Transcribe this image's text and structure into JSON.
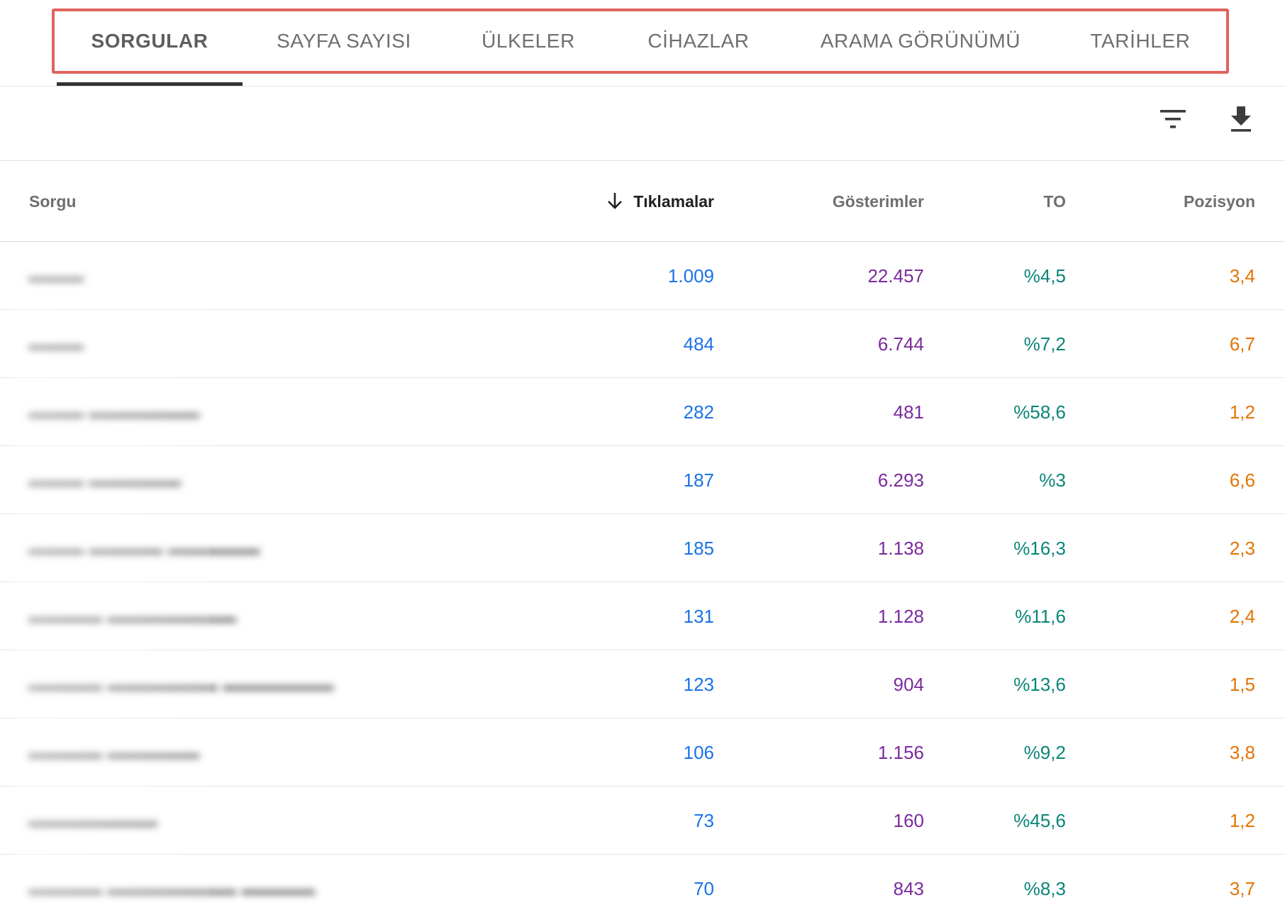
{
  "tabs": [
    {
      "label": "SORGULAR",
      "active": true
    },
    {
      "label": "SAYFA SAYISI",
      "active": false
    },
    {
      "label": "ÜLKELER",
      "active": false
    },
    {
      "label": "CİHAZLAR",
      "active": false
    },
    {
      "label": "ARAMA GÖRÜNÜMÜ",
      "active": false
    },
    {
      "label": "TARİHLER",
      "active": false
    }
  ],
  "toolbar": {
    "filter_icon": "filter-icon",
    "download_icon": "download-icon"
  },
  "table": {
    "columns": {
      "query": "Sorgu",
      "clicks": "Tıklamalar",
      "impressions": "Gösterimler",
      "ctr": "TO",
      "position": "Pozisyon"
    },
    "sorted_by": "clicks",
    "sort_direction": "desc",
    "rows": [
      {
        "query": "",
        "clicks": "1.009",
        "impressions": "22.457",
        "ctr": "%4,5",
        "position": "3,4"
      },
      {
        "query": "",
        "clicks": "484",
        "impressions": "6.744",
        "ctr": "%7,2",
        "position": "6,7"
      },
      {
        "query": "",
        "clicks": "282",
        "impressions": "481",
        "ctr": "%58,6",
        "position": "1,2"
      },
      {
        "query": "",
        "clicks": "187",
        "impressions": "6.293",
        "ctr": "%3",
        "position": "6,6"
      },
      {
        "query": "",
        "clicks": "185",
        "impressions": "1.138",
        "ctr": "%16,3",
        "position": "2,3"
      },
      {
        "query": "",
        "clicks": "131",
        "impressions": "1.128",
        "ctr": "%11,6",
        "position": "2,4"
      },
      {
        "query": "",
        "clicks": "123",
        "impressions": "904",
        "ctr": "%13,6",
        "position": "1,5"
      },
      {
        "query": "",
        "clicks": "106",
        "impressions": "1.156",
        "ctr": "%9,2",
        "position": "3,8"
      },
      {
        "query": "",
        "clicks": "73",
        "impressions": "160",
        "ctr": "%45,6",
        "position": "1,2"
      },
      {
        "query": "",
        "clicks": "70",
        "impressions": "843",
        "ctr": "%8,3",
        "position": "3,7"
      }
    ]
  },
  "colors": {
    "clicks": "#1a73e8",
    "impressions": "#7b2a9e",
    "ctr": "#0a8578",
    "position": "#e37400",
    "highlight_border": "#e0645e"
  }
}
